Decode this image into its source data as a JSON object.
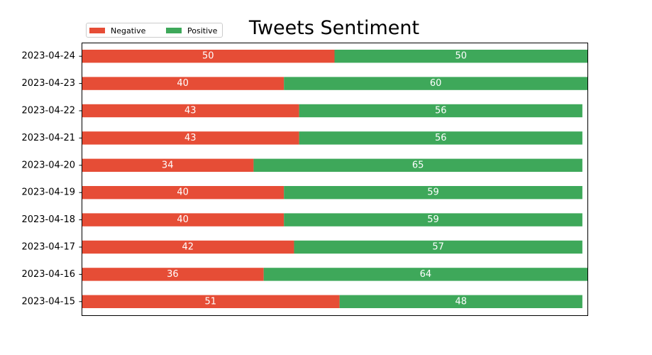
{
  "chart_data": {
    "type": "bar",
    "orientation": "horizontal",
    "stacked": true,
    "title": "Tweets Sentiment",
    "xlabel": "",
    "ylabel": "",
    "categories": [
      "2023-04-24",
      "2023-04-23",
      "2023-04-22",
      "2023-04-21",
      "2023-04-20",
      "2023-04-19",
      "2023-04-18",
      "2023-04-17",
      "2023-04-16",
      "2023-04-15"
    ],
    "series": [
      {
        "name": "Negative",
        "color": "#e64d36",
        "values": [
          50,
          40,
          43,
          43,
          34,
          40,
          40,
          42,
          36,
          51
        ]
      },
      {
        "name": "Positive",
        "color": "#3ea85a",
        "values": [
          50,
          60,
          56,
          56,
          65,
          59,
          59,
          57,
          64,
          48
        ]
      }
    ],
    "xlim": [
      0,
      100
    ],
    "x_ticks_visible": false,
    "data_labels": true,
    "grid": false,
    "legend_position": "top-left"
  }
}
